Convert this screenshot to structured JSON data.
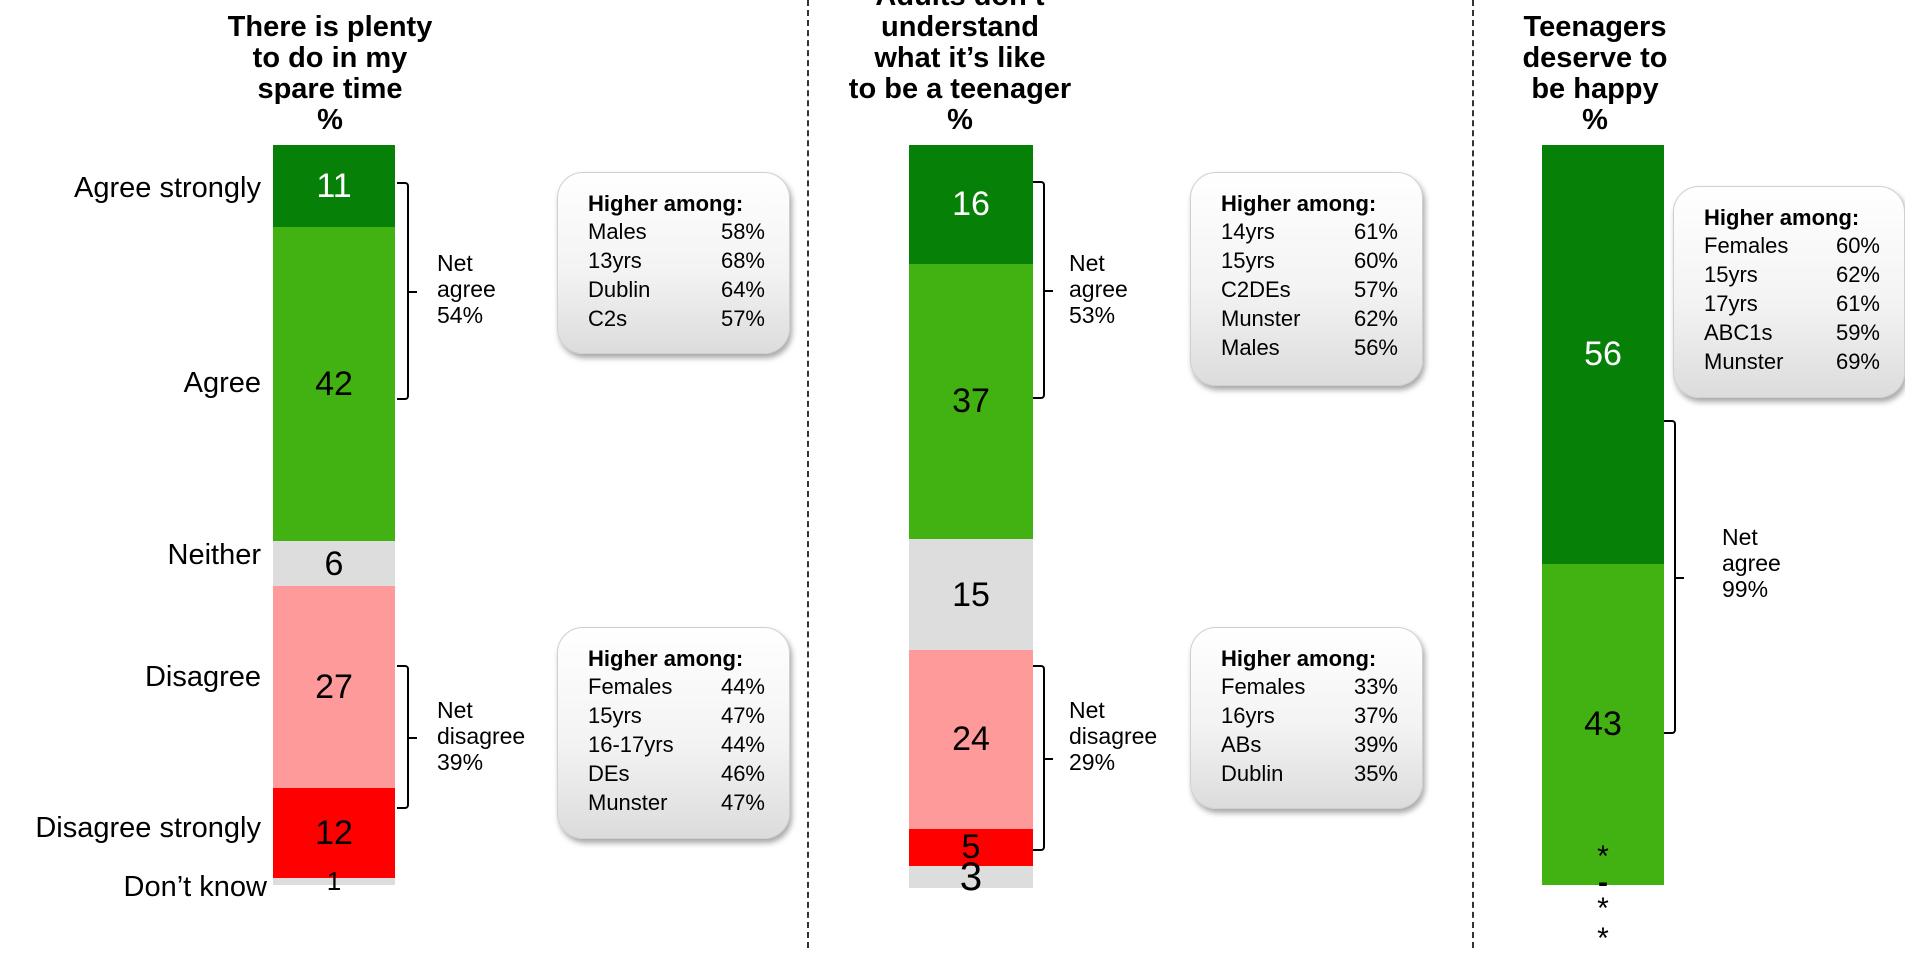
{
  "colors": {
    "agree_strongly": "#068006",
    "agree": "#41b212",
    "neither": "#dddddd",
    "disagree": "#ff9a9a",
    "disagree_strongly": "#ff0000",
    "dont_know": "#dddddd"
  },
  "row_labels": [
    "Agree strongly",
    "Agree",
    "Neither",
    "Disagree",
    "Disagree strongly",
    "Don’t know"
  ],
  "callout_heading": "Higher among:",
  "chart_data": [
    {
      "type": "bar",
      "stacked": true,
      "title": "There is plenty\nto do in my\nspare time",
      "unit": "%",
      "categories": [
        "Agree strongly",
        "Agree",
        "Neither",
        "Disagree",
        "Disagree strongly",
        "Don’t know"
      ],
      "values": [
        11,
        42,
        6,
        27,
        12,
        1
      ],
      "net": [
        {
          "label": "Net\nagree\n54%"
        },
        {
          "label": "Net\ndisagree\n39%"
        }
      ],
      "callouts": [
        {
          "rows": [
            [
              "Males",
              "58%"
            ],
            [
              "13yrs",
              "68%"
            ],
            [
              "Dublin",
              "64%"
            ],
            [
              "C2s",
              "57%"
            ]
          ]
        },
        {
          "rows": [
            [
              "Females",
              "44%"
            ],
            [
              "15yrs",
              "47%"
            ],
            [
              "16-17yrs",
              "44%"
            ],
            [
              "DEs",
              "46%"
            ],
            [
              "Munster",
              "47%"
            ]
          ]
        }
      ]
    },
    {
      "type": "bar",
      "stacked": true,
      "title": "Adults don’t\nunderstand\nwhat it’s like\nto be a teenager",
      "unit": "%",
      "categories": [
        "Agree strongly",
        "Agree",
        "Neither",
        "Disagree",
        "Disagree strongly",
        "Don’t know"
      ],
      "values": [
        16,
        37,
        15,
        24,
        5,
        3
      ],
      "net": [
        {
          "label": "Net\nagree\n53%"
        },
        {
          "label": "Net\ndisagree\n29%"
        }
      ],
      "callouts": [
        {
          "rows": [
            [
              "14yrs",
              "61%"
            ],
            [
              "15yrs",
              "60%"
            ],
            [
              "C2DEs",
              "57%"
            ],
            [
              "Munster",
              "62%"
            ],
            [
              "Males",
              "56%"
            ]
          ]
        },
        {
          "rows": [
            [
              "Females",
              "33%"
            ],
            [
              "16yrs",
              "37%"
            ],
            [
              "ABs",
              "39%"
            ],
            [
              "Dublin",
              "35%"
            ]
          ]
        }
      ]
    },
    {
      "type": "bar",
      "stacked": true,
      "title": "Teenagers\ndeserve to\nbe happy",
      "unit": "%",
      "categories": [
        "Agree strongly",
        "Agree",
        "Neither",
        "Disagree",
        "Disagree strongly",
        "Don’t know"
      ],
      "values": [
        56,
        43,
        "*",
        "-",
        "*",
        "*"
      ],
      "net": [
        {
          "label": "Net\nagree\n99%"
        }
      ],
      "callouts": [
        {
          "rows": [
            [
              "Females",
              "60%"
            ],
            [
              "15yrs",
              "62%"
            ],
            [
              "17yrs",
              "61%"
            ],
            [
              "ABC1s",
              "59%"
            ],
            [
              "Munster",
              "69%"
            ]
          ]
        }
      ]
    }
  ]
}
